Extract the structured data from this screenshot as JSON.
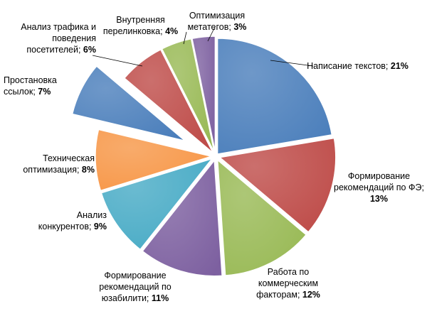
{
  "chart_data": {
    "type": "pie",
    "categories": [
      "Написание текстов;",
      "Формирование рекомендаций по ФЭ;",
      "Работа по коммерческим факторам;",
      "Формирование рекомендаций по юзабилити;",
      "Анализ конкурентов;",
      "Техническая оптимизация;",
      "Простановка ссылок;",
      "Анализ трафика и поведения посетителей;",
      "Внутренняя перелинковка;",
      "Оптимизация метатегов;"
    ],
    "values": [
      21,
      13,
      12,
      11,
      9,
      8,
      7,
      6,
      4,
      3
    ],
    "value_labels": [
      "21%",
      "13%",
      "12%",
      "11%",
      "9%",
      "8%",
      "7%",
      "6%",
      "4%",
      "3%"
    ],
    "colors": [
      "#4a7ebb",
      "#be4b48",
      "#98b954",
      "#7d60a0",
      "#46aac5",
      "#f79646",
      "#4a7ebb",
      "#be4b48",
      "#98b954",
      "#7d60a0"
    ]
  }
}
